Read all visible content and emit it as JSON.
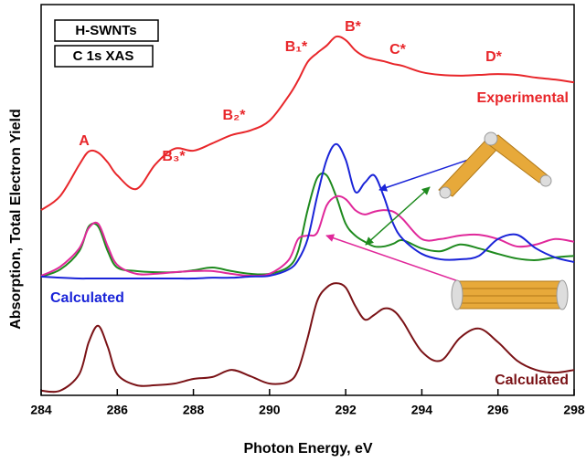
{
  "chart_data": {
    "type": "line",
    "xlabel": "Photon Energy, eV",
    "ylabel": "Absorption, Total Electron Yield",
    "x": [
      284,
      284.5,
      285,
      285.25,
      285.5,
      285.75,
      286,
      286.5,
      287,
      287.5,
      288,
      288.5,
      289,
      289.5,
      290,
      290.5,
      290.75,
      291,
      291.25,
      291.5,
      291.75,
      292,
      292.25,
      292.5,
      292.75,
      293,
      293.25,
      293.5,
      294,
      294.5,
      295,
      295.5,
      296,
      296.5,
      297,
      297.5,
      298
    ],
    "xlim": [
      284,
      298
    ],
    "xticks": [
      284,
      286,
      288,
      290,
      292,
      294,
      296,
      298
    ],
    "ylim": [
      0,
      100
    ],
    "series": [
      {
        "color": "#e8262a",
        "values": [
          47.4,
          51,
          59,
          62.4,
          62.1,
          59.6,
          56.3,
          52.8,
          59.1,
          63.1,
          62.6,
          64.5,
          66.6,
          67.8,
          70.3,
          76.6,
          80.6,
          85.3,
          87.6,
          89.5,
          91.8,
          90.9,
          88.3,
          86.7,
          86,
          85.5,
          84.8,
          84.3,
          82.7,
          82,
          81.8,
          82,
          82.2,
          82,
          81.3,
          80.8,
          80.1
        ]
      },
      {
        "color": "#1e8a1e",
        "values": [
          30.4,
          32.2,
          36.9,
          43.2,
          43.2,
          36.9,
          32.7,
          31.8,
          31.5,
          31.5,
          32,
          32.7,
          31.8,
          31.1,
          31.1,
          32.9,
          36.9,
          47.4,
          55.6,
          56.3,
          50.9,
          43.9,
          40.9,
          39.3,
          38.1,
          38.1,
          38.8,
          39.7,
          37.6,
          36.9,
          38.6,
          37.6,
          36.2,
          35,
          34.6,
          35.3,
          35.7
        ]
      },
      {
        "color": "#e0289a",
        "values": [
          30.6,
          32.9,
          37.6,
          42.8,
          43.9,
          38.1,
          33.4,
          31.1,
          31.1,
          31.5,
          31.8,
          31.8,
          31.1,
          30.6,
          31.1,
          34.6,
          40,
          40.9,
          41.6,
          48.6,
          50.9,
          50.2,
          47.4,
          46.3,
          47,
          47.4,
          47,
          45.1,
          40,
          40,
          40.9,
          41.1,
          40,
          38.1,
          38.6,
          40,
          39.3
        ]
      },
      {
        "color": "#1a24d8",
        "values": [
          30.4,
          30.1,
          29.9,
          29.9,
          29.9,
          29.9,
          29.9,
          29.9,
          29.9,
          29.9,
          29.9,
          30.1,
          30.1,
          30.4,
          30.6,
          32.2,
          34.6,
          40,
          50.9,
          60.3,
          64.3,
          60.3,
          52.1,
          54.4,
          56.3,
          50.9,
          43.9,
          40,
          36.2,
          34.8,
          34.8,
          35.7,
          40,
          41.1,
          37.6,
          35.3,
          34.1
        ]
      },
      {
        "color": "#7a1216",
        "values": [
          1.2,
          1.2,
          5.4,
          13.6,
          17.8,
          12.4,
          5.4,
          2.6,
          2.6,
          3,
          4.2,
          4.7,
          6.5,
          4.9,
          3,
          3.5,
          6.5,
          14.7,
          24.1,
          27.6,
          28.7,
          27.6,
          22.9,
          19.4,
          20.6,
          22.2,
          21.7,
          18.9,
          11.2,
          8.9,
          14.7,
          17.1,
          13.6,
          8.9,
          6.5,
          5.8,
          6.5
        ]
      }
    ],
    "annotations": [
      {
        "text": "A",
        "color": "#e8262a"
      },
      {
        "text": "B₃*",
        "color": "#e8262a"
      },
      {
        "text": "B₂*",
        "color": "#e8262a"
      },
      {
        "text": "B₁*",
        "color": "#e8262a"
      },
      {
        "text": "B*",
        "color": "#e8262a"
      },
      {
        "text": "C*",
        "color": "#e8262a"
      },
      {
        "text": "D*",
        "color": "#e8262a"
      },
      {
        "text": "Experimental",
        "color": "#e8262a"
      },
      {
        "text": "Calculated",
        "color": "#1a24d8"
      },
      {
        "text": "Calculated",
        "color": "#7a1216"
      }
    ],
    "boxes": [
      "H-SWNTs",
      "C 1s XAS"
    ]
  }
}
